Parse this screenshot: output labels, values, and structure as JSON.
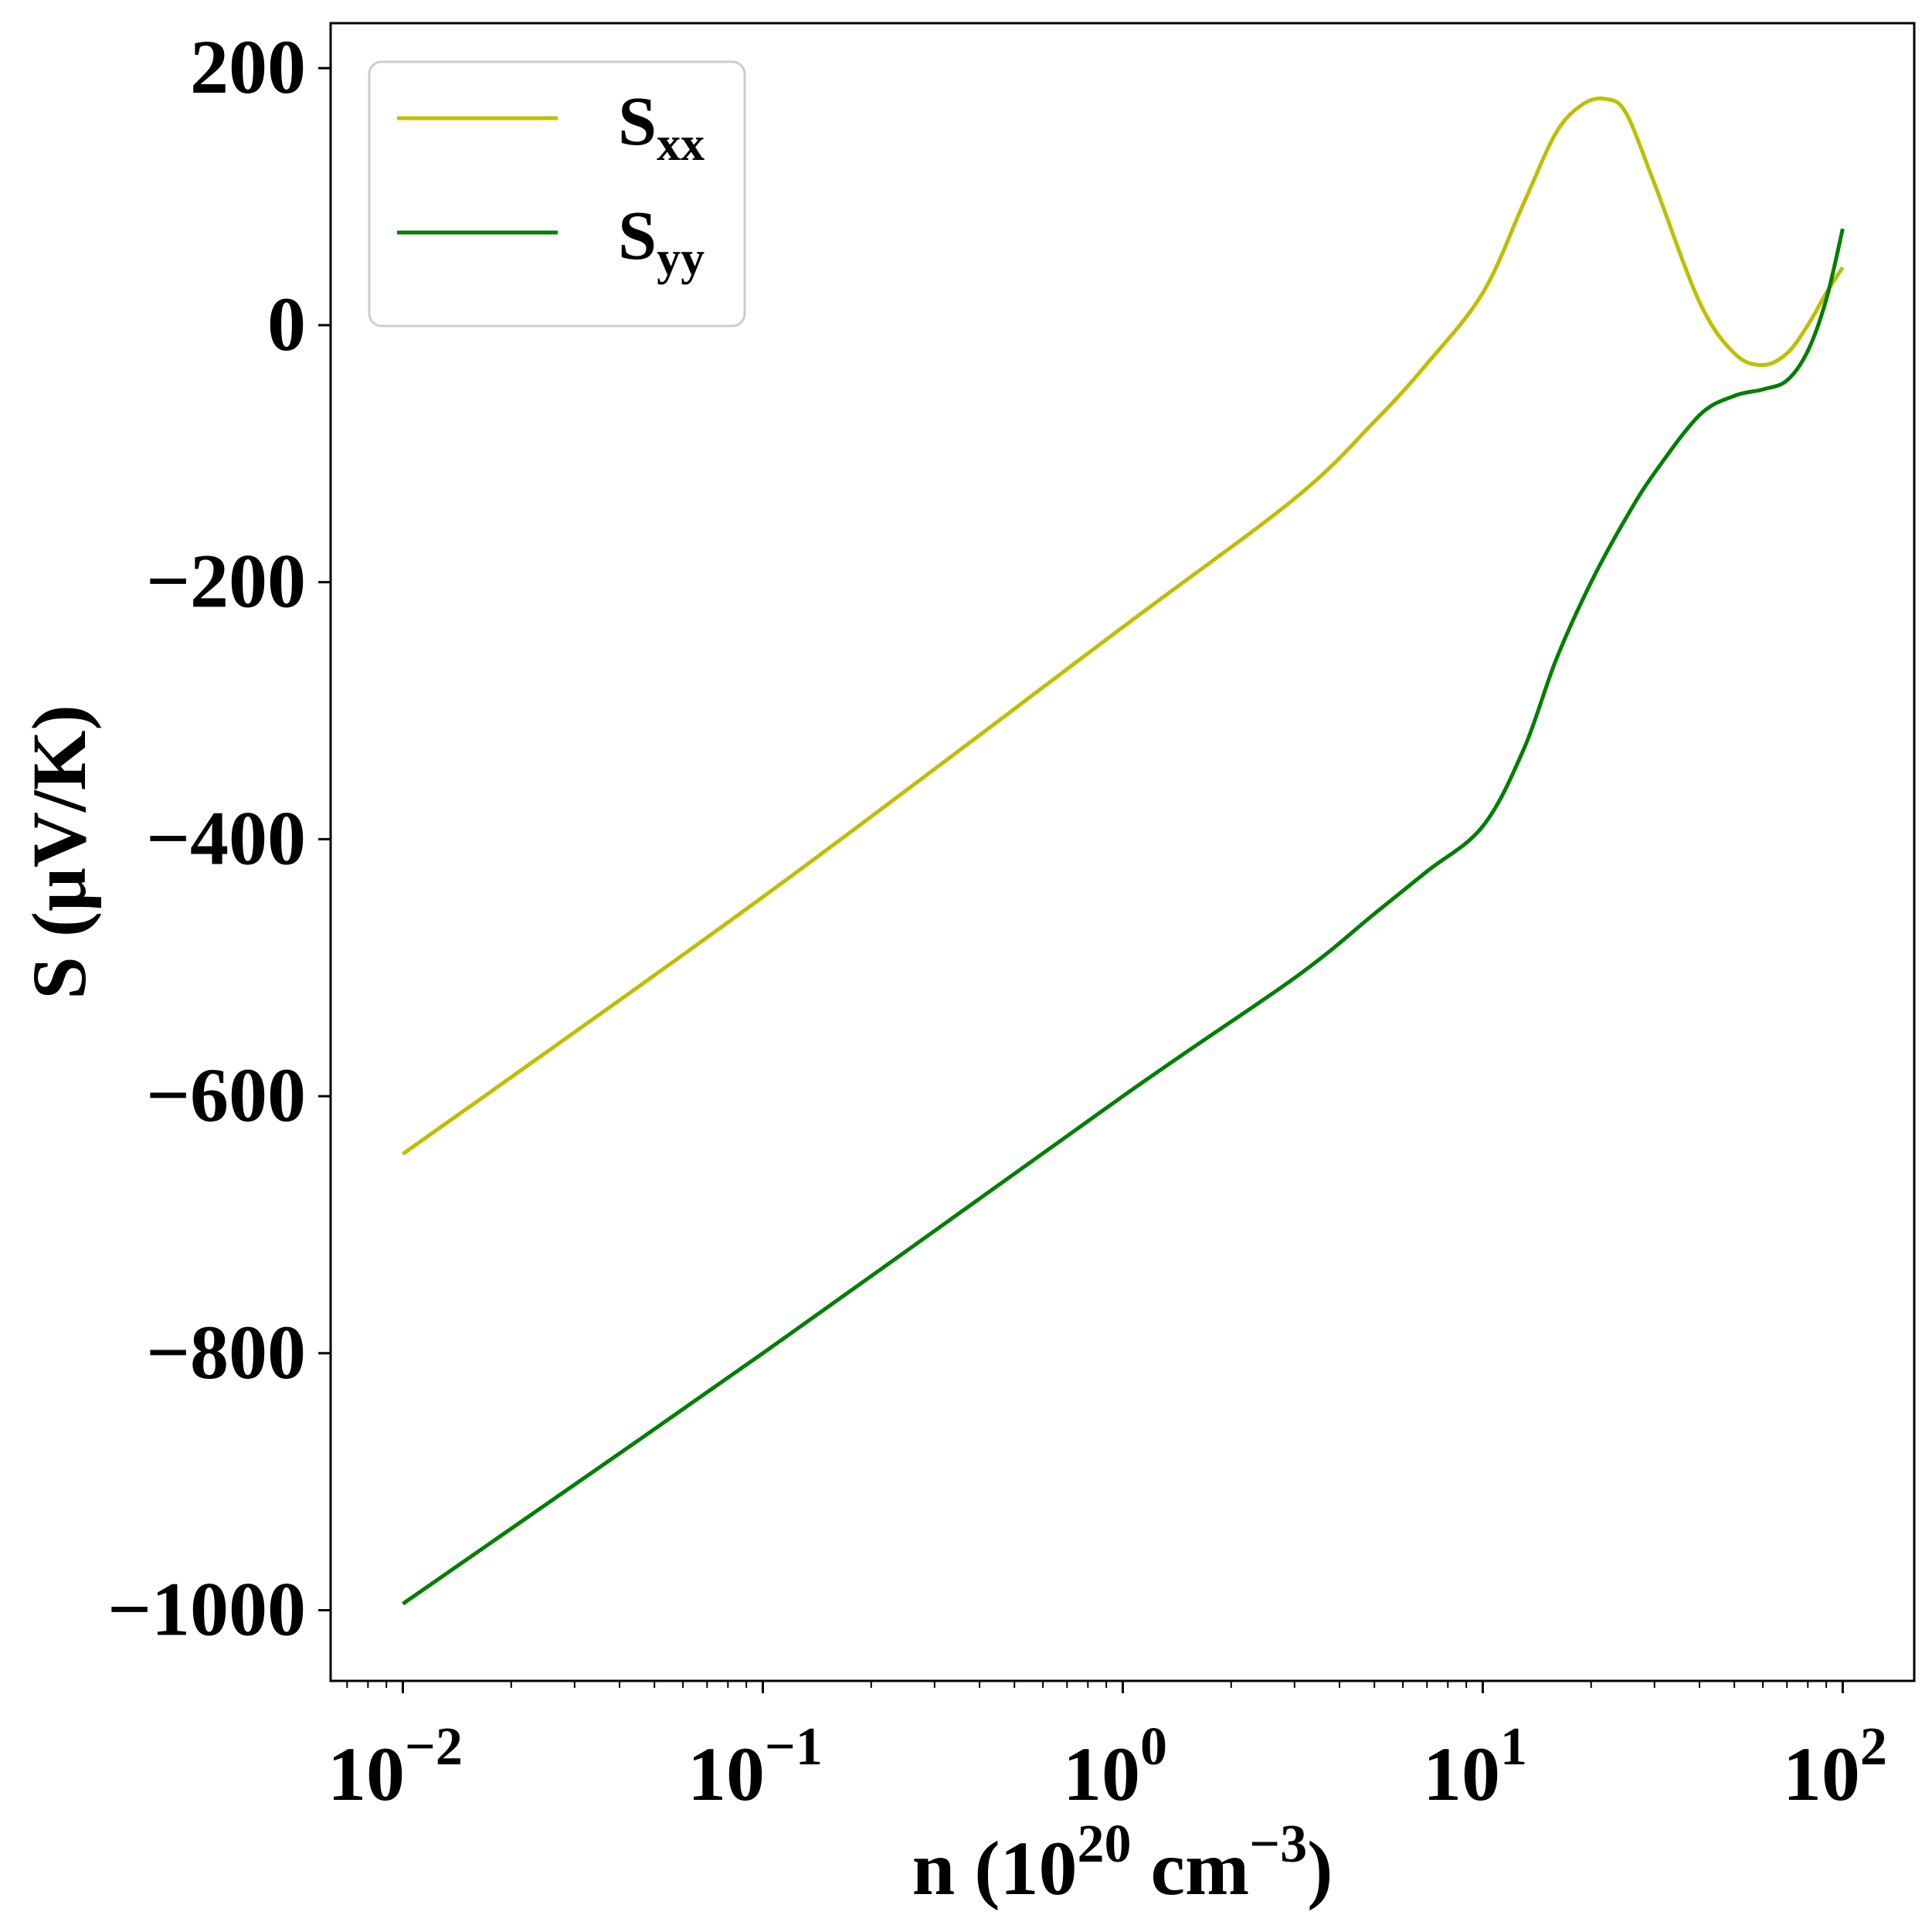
{
  "chart_data": {
    "type": "line",
    "xscale": "log",
    "xlim": [
      0.0063,
      158
    ],
    "ylim": [
      -1055,
      235
    ],
    "xlabel": {
      "main": "n (10",
      "sup1": "20",
      "mid": " cm",
      "sup2": "−3",
      "end": ")"
    },
    "ylabel": "S (μV/K)",
    "grid": false,
    "legend_position": "top-left",
    "xticks": [
      {
        "value": 0.01,
        "base": "10",
        "exp": "−2"
      },
      {
        "value": 0.1,
        "base": "10",
        "exp": "−1"
      },
      {
        "value": 1,
        "base": "10",
        "exp": "0"
      },
      {
        "value": 10,
        "base": "10",
        "exp": "1"
      },
      {
        "value": 100,
        "base": "10",
        "exp": "2"
      }
    ],
    "yticks": [
      {
        "value": 200,
        "label": "200"
      },
      {
        "value": 0,
        "label": "0"
      },
      {
        "value": -200,
        "label": "−200"
      },
      {
        "value": -400,
        "label": "−400"
      },
      {
        "value": -600,
        "label": "−600"
      },
      {
        "value": -800,
        "label": "−800"
      },
      {
        "value": -1000,
        "label": "−1000"
      }
    ],
    "series": [
      {
        "name": "S",
        "name_sub": "xx",
        "color": "#bfbf00",
        "x": [
          0.01,
          0.1,
          1,
          3,
          5,
          7,
          10,
          13,
          16,
          19,
          22,
          25,
          30,
          40,
          50,
          60,
          70,
          80,
          90,
          100
        ],
        "y": [
          -645,
          -445,
          -235,
          -135,
          -75,
          -30,
          25,
          95,
          150,
          172,
          176,
          165,
          110,
          18,
          -22,
          -31,
          -22,
          0,
          25,
          45
        ]
      },
      {
        "name": "S",
        "name_sub": "yy",
        "color": "#007f00",
        "x": [
          0.01,
          0.1,
          1,
          3,
          5,
          7,
          10,
          13,
          16,
          20,
          25,
          30,
          40,
          50,
          60,
          70,
          80,
          90,
          100
        ],
        "y": [
          -995,
          -800,
          -600,
          -508,
          -458,
          -425,
          -390,
          -330,
          -260,
          -200,
          -150,
          -115,
          -70,
          -55,
          -50,
          -43,
          -20,
          20,
          75
        ]
      }
    ]
  }
}
